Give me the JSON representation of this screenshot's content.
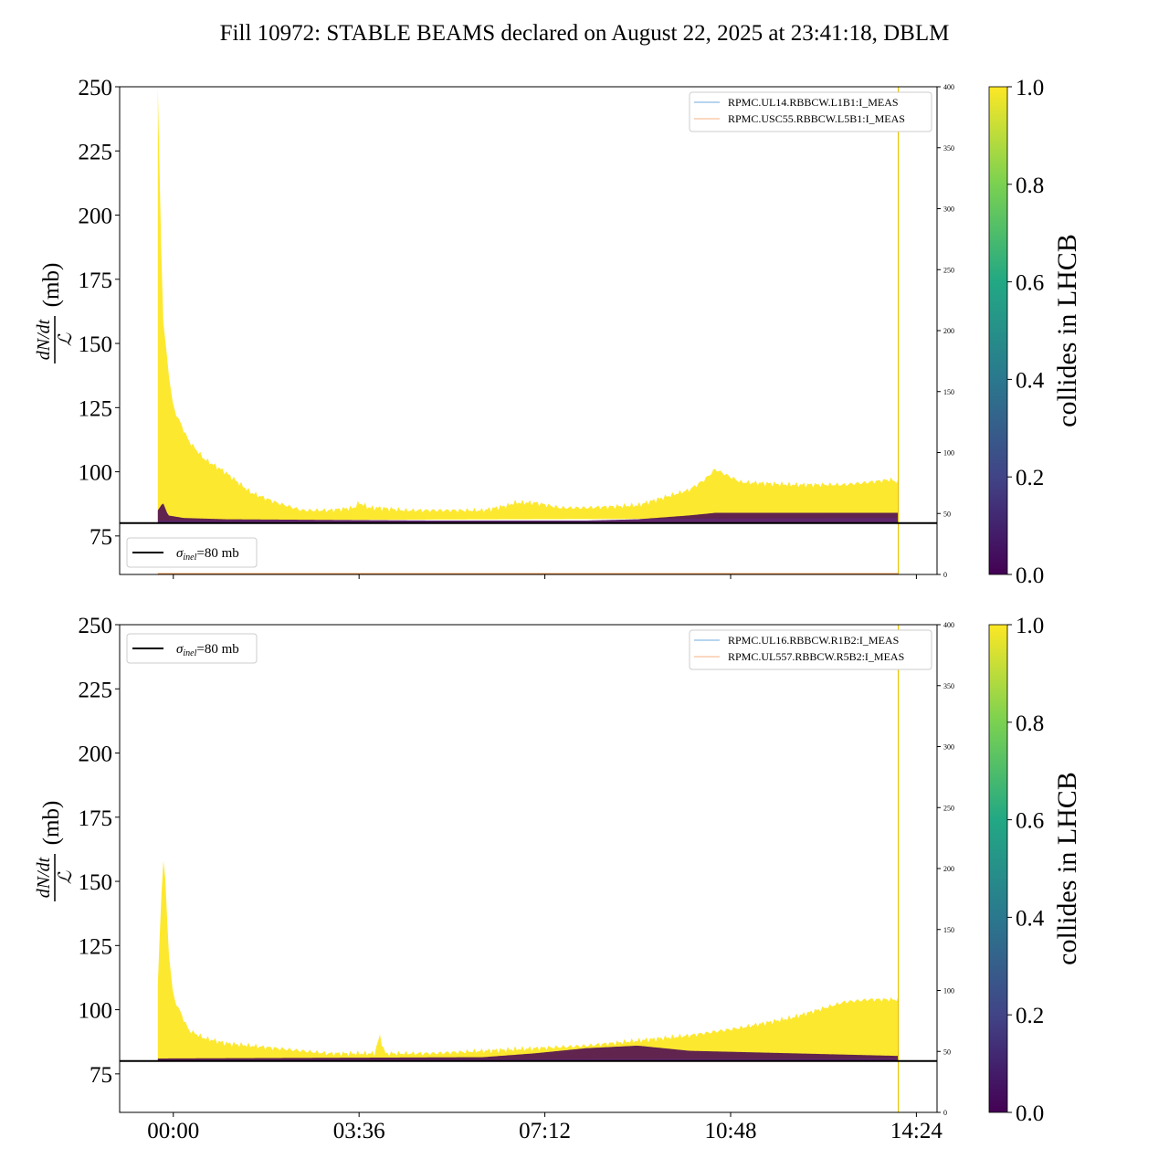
{
  "title": "Fill 10972: STABLE BEAMS declared on August 22, 2025 at 23:41:18, DBLM",
  "chart_data": [
    {
      "type": "area",
      "ylabel": "dN/dt / ℒ (mb)",
      "ylim": [
        60,
        250
      ],
      "yticks": [
        75,
        100,
        125,
        150,
        175,
        200,
        225,
        250
      ],
      "y2lim": [
        0,
        400
      ],
      "y2ticks": [
        0,
        50,
        100,
        150,
        200,
        250,
        300,
        350,
        400
      ],
      "xlim_hours": [
        -1.04,
        14.8
      ],
      "xticks": [],
      "reference_line": {
        "value": 80,
        "label_sym": "σ",
        "label_sub": "inel",
        "label_rest": "=80 mb"
      },
      "ref_legend_position": "lower-left",
      "legend_position": "upper-right",
      "legend": [
        "RPMC.UL14.RBBCW.L1B1:I_MEAS",
        "RPMC.USC55.RBBCW.L5B1:I_MEAS"
      ],
      "legend_colors": [
        "#6fa8dc",
        "#f4b183"
      ],
      "end_marker_hours": 14.05,
      "current_series": {
        "name": "RPMC.USC55.RBBCW.L5B1:I_MEAS",
        "hours": [
          -0.3,
          14.05
        ],
        "values": [
          0.5,
          0.5
        ]
      },
      "yellow_upper": {
        "hours": [
          -0.3,
          -0.25,
          -0.2,
          -0.1,
          0,
          0.3,
          0.6,
          1,
          1.5,
          2,
          2.5,
          3,
          3.5,
          3.6,
          3.8,
          4,
          4.5,
          5,
          6,
          6.5,
          6.6,
          7,
          7.5,
          8,
          9,
          9.5,
          10,
          10.3,
          10.5,
          11,
          12,
          13,
          13.5,
          13.9,
          14.05
        ],
        "values": [
          250,
          200,
          160,
          140,
          125,
          112,
          105,
          100,
          92,
          88,
          85,
          85,
          86,
          88,
          86,
          86,
          85,
          85,
          85,
          87,
          88,
          88,
          86,
          86,
          87,
          90,
          93,
          97,
          101,
          96,
          95,
          95,
          96,
          97,
          96
        ]
      },
      "yellow_lower": {
        "hours": [
          -0.3,
          14.05
        ],
        "values": [
          81,
          82
        ]
      },
      "purple_upper": {
        "hours": [
          -0.3,
          -0.2,
          -0.1,
          0.2,
          1,
          5,
          8,
          9,
          10,
          10.5,
          12,
          14.05
        ],
        "values": [
          85,
          88,
          83,
          82,
          81.5,
          81,
          81,
          81.5,
          83,
          84,
          84,
          84
        ]
      },
      "colorbar": {
        "label": "collides in LHCB",
        "ticks": [
          "0.0",
          "0.2",
          "0.4",
          "0.6",
          "0.8",
          "1.0"
        ],
        "colors": [
          "#440154",
          "#3b528b",
          "#21918c",
          "#5ec962",
          "#fde725"
        ]
      }
    },
    {
      "type": "area",
      "ylabel": "dN/dt / ℒ (mb)",
      "ylim": [
        60,
        250
      ],
      "yticks": [
        75,
        100,
        125,
        150,
        175,
        200,
        225,
        250
      ],
      "y2lim": [
        0,
        400
      ],
      "y2ticks": [
        0,
        50,
        100,
        150,
        200,
        250,
        300,
        350,
        400
      ],
      "xlim_hours": [
        -1.04,
        14.8
      ],
      "xticks": [
        "00:00",
        "03:36",
        "07:12",
        "10:48",
        "14:24"
      ],
      "xtick_hours": [
        0,
        3.6,
        7.2,
        10.8,
        14.4
      ],
      "reference_line": {
        "value": 80,
        "label_sym": "σ",
        "label_sub": "inel",
        "label_rest": "=80 mb"
      },
      "ref_legend_position": "upper-left",
      "legend_position": "upper-right",
      "legend": [
        "RPMC.UL16.RBBCW.R1B2:I_MEAS",
        "RPMC.UL557.RBBCW.R5B2:I_MEAS"
      ],
      "legend_colors": [
        "#6fa8dc",
        "#f4b183"
      ],
      "end_marker_hours": 14.05,
      "yellow_upper": {
        "hours": [
          -0.3,
          -0.2,
          -0.15,
          -0.1,
          0,
          0.3,
          0.6,
          1,
          2,
          3,
          3.9,
          4,
          4.1,
          5,
          6,
          7,
          8,
          9,
          10,
          11,
          11.5,
          12,
          12.5,
          13,
          13.5,
          14.05
        ],
        "values": [
          110,
          160,
          150,
          125,
          105,
          92,
          89,
          87,
          85,
          83,
          83,
          90,
          83,
          83,
          84,
          85,
          86,
          88,
          90,
          93,
          95,
          97,
          100,
          103,
          104,
          104
        ]
      },
      "yellow_lower": {
        "hours": [
          -0.3,
          14.05
        ],
        "values": [
          80.5,
          81
        ]
      },
      "purple_upper": {
        "hours": [
          -0.3,
          6,
          7,
          8,
          9,
          10,
          14.05
        ],
        "values": [
          81,
          81.5,
          83,
          85,
          86,
          84,
          82
        ]
      },
      "colorbar": {
        "label": "collides in LHCB",
        "ticks": [
          "0.0",
          "0.2",
          "0.4",
          "0.6",
          "0.8",
          "1.0"
        ],
        "colors": [
          "#440154",
          "#3b528b",
          "#21918c",
          "#5ec962",
          "#fde725"
        ]
      }
    }
  ]
}
